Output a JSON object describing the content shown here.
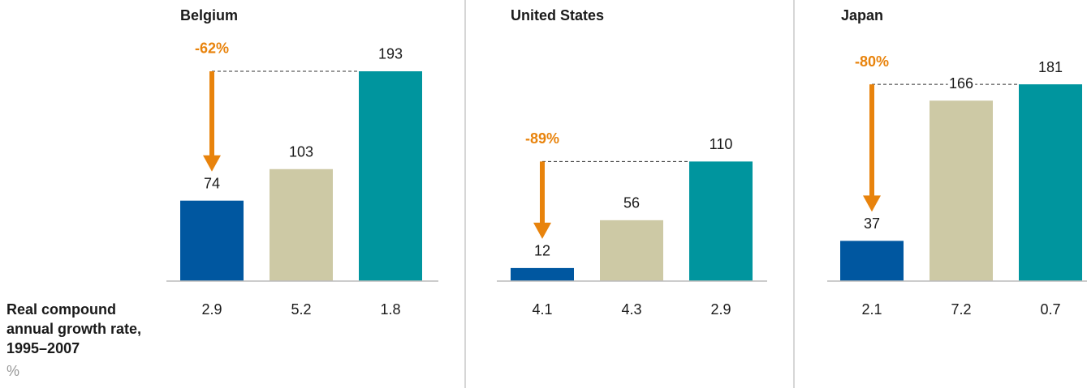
{
  "row_label": "Real compound annual growth rate, 1995–2007",
  "row_unit": "%",
  "chart_data": [
    {
      "type": "bar",
      "title": "Belgium",
      "values": [
        74,
        103,
        193
      ],
      "colors": [
        "#0057a0",
        "#cdc9a5",
        "#00959e"
      ],
      "growth": [
        2.9,
        5.2,
        1.8
      ],
      "annotation": "-62%"
    },
    {
      "type": "bar",
      "title": "United States",
      "values": [
        12,
        56,
        110
      ],
      "colors": [
        "#0057a0",
        "#cdc9a5",
        "#00959e"
      ],
      "growth": [
        4.1,
        4.3,
        2.9
      ],
      "annotation": "-89%"
    },
    {
      "type": "bar",
      "title": "Japan",
      "values": [
        37,
        166,
        181
      ],
      "colors": [
        "#0057a0",
        "#cdc9a5",
        "#00959e"
      ],
      "growth": [
        2.1,
        7.2,
        0.7
      ],
      "annotation": "-80%"
    }
  ]
}
